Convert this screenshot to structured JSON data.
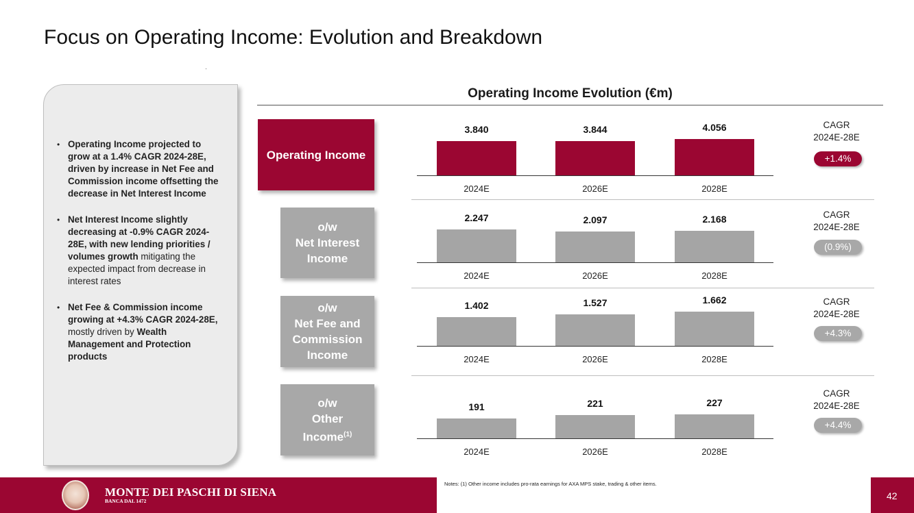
{
  "title": "Focus on Operating Income: Evolution and Breakdown",
  "bullets": [
    {
      "parts": [
        {
          "b": true,
          "t": "Operating Income projected to grow at a 1.4% CAGR 2024-28E, driven by increase in Net Fee and Commission income offsetting the decrease in Net Interest Income"
        }
      ]
    },
    {
      "parts": [
        {
          "b": true,
          "t": "Net Interest Income slightly decreasing at -0.9% CAGR 2024-28E, with new lending priorities / volumes growth"
        },
        {
          "b": false,
          "t": " mitigating the expected impact from decrease in interest rates"
        }
      ]
    },
    {
      "parts": [
        {
          "b": true,
          "t": "Net Fee & Commission income growing at +4.3% CAGR 2024-28E,"
        },
        {
          "b": false,
          "t": " mostly driven by "
        },
        {
          "b": true,
          "t": "Wealth Management and Protection products"
        }
      ]
    }
  ],
  "chart_data": [
    {
      "type": "bar",
      "title": "Operating Income Evolution (€m)",
      "label": "Operating Income",
      "categories": [
        "2024E",
        "2026E",
        "2028E"
      ],
      "values": [
        3840,
        3844,
        4056
      ],
      "value_labels": [
        "3.840",
        "3.844",
        "4.056"
      ],
      "cagr_label": "CAGR 2024E-28E",
      "cagr_value": "+1.4%",
      "color": "#9b0632"
    },
    {
      "type": "bar",
      "label": "o/w Net Interest Income",
      "categories": [
        "2024E",
        "2026E",
        "2028E"
      ],
      "values": [
        2247,
        2097,
        2168
      ],
      "value_labels": [
        "2.247",
        "2.097",
        "2.168"
      ],
      "cagr_label": "CAGR 2024E-28E",
      "cagr_value": "(0.9%)",
      "color": "#a5a5a5"
    },
    {
      "type": "bar",
      "label": "o/w Net Fee and Commission Income",
      "categories": [
        "2024E",
        "2026E",
        "2028E"
      ],
      "values": [
        1402,
        1527,
        1662
      ],
      "value_labels": [
        "1.402",
        "1.527",
        "1.662"
      ],
      "cagr_label": "CAGR 2024E-28E",
      "cagr_value": "+4.3%",
      "color": "#a5a5a5"
    },
    {
      "type": "bar",
      "label": "o/w Other Income",
      "label_superscript": "(1)",
      "categories": [
        "2024E",
        "2026E",
        "2028E"
      ],
      "values": [
        191,
        221,
        227
      ],
      "value_labels": [
        "191",
        "221",
        "227"
      ],
      "cagr_label": "CAGR 2024E-28E",
      "cagr_value": "+4.4%",
      "color": "#a5a5a5"
    }
  ],
  "panel_labels": {
    "p0": [
      "Operating Income"
    ],
    "p1": [
      "o/w",
      "Net Interest",
      "Income"
    ],
    "p2": [
      "o/w",
      "Net Fee and",
      "Commission",
      "Income"
    ],
    "p3": [
      "o/w",
      "Other",
      "Income"
    ]
  },
  "cagr": {
    "line1": "CAGR",
    "line2": "2024E-28E"
  },
  "footer": {
    "bank_name": "MONTE DEI PASCHI DI SIENA",
    "bank_sub": "BANCA DAL 1472",
    "notes": "Notes: (1) Other income includes pro-rata earnings for AXA MPS stake, trading & other items.",
    "page_number": "42"
  },
  "colors": {
    "brand": "#9b0632",
    "grey": "#a5a5a5"
  }
}
